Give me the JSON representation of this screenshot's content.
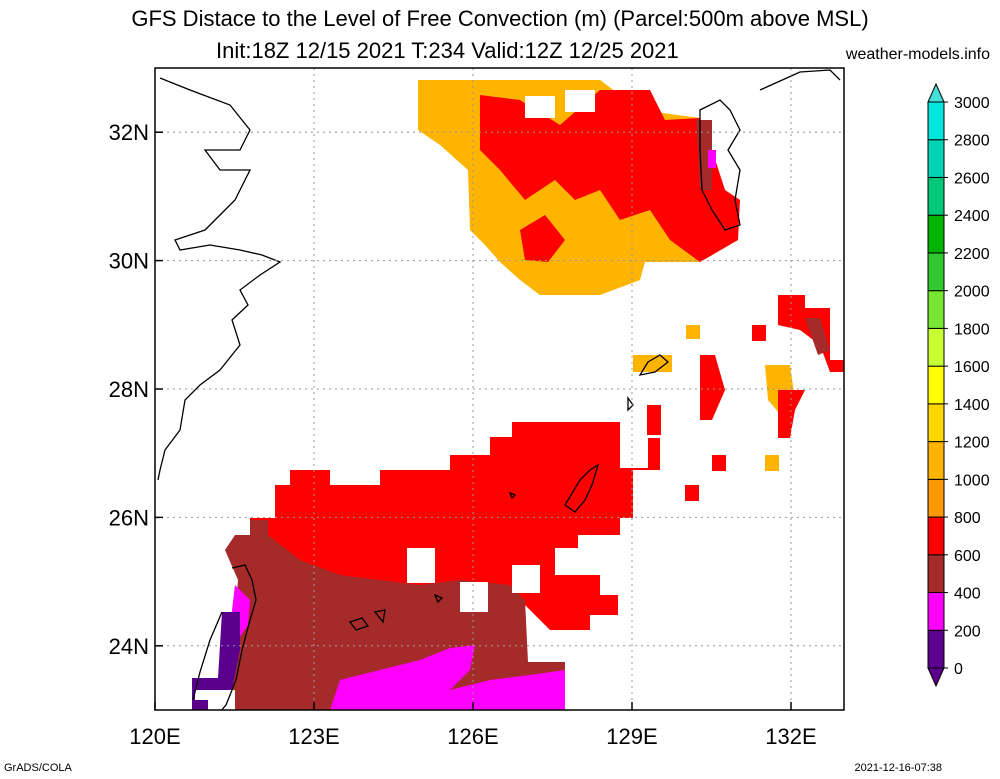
{
  "title_line1": "GFS Distace to the Level of Free Convection (m) (Parcel:500m above MSL)",
  "title_line2": "Init:18Z 12/15 2021 T:234 Valid:12Z 12/25 2021",
  "site": "weather-models.info",
  "footer_left": "GrADS/COLA",
  "footer_right": "2021-12-16-07:38",
  "map": {
    "lon_ticks": [
      {
        "lon": 120,
        "label": "120E"
      },
      {
        "lon": 123,
        "label": "123E"
      },
      {
        "lon": 126,
        "label": "126E"
      },
      {
        "lon": 129,
        "label": "129E"
      },
      {
        "lon": 132,
        "label": "132E"
      }
    ],
    "lat_ticks": [
      {
        "lat": 24,
        "label": "24N"
      },
      {
        "lat": 26,
        "label": "26N"
      },
      {
        "lat": 28,
        "label": "28N"
      },
      {
        "lat": 30,
        "label": "30N"
      },
      {
        "lat": 32,
        "label": "32N"
      }
    ],
    "lon_range": [
      120,
      133
    ],
    "lat_range": [
      23,
      33
    ],
    "grid": true
  },
  "colorbar": {
    "levels": [
      "0",
      "200",
      "400",
      "600",
      "800",
      "1000",
      "1200",
      "1400",
      "1600",
      "1800",
      "2000",
      "2200",
      "2400",
      "2600",
      "2800",
      "3000"
    ],
    "colors": [
      "#5a008c",
      "#ff00ff",
      "#a52a2a",
      "#ff0000",
      "#ff9900",
      "#ffb400",
      "#ffd700",
      "#ffff00",
      "#c8ff32",
      "#78e632",
      "#32c832",
      "#00b400",
      "#00c878",
      "#00d2b4",
      "#00e6dc",
      "#00ffff"
    ],
    "below_color": "#5a008c",
    "above_color": "#44e0d8"
  }
}
